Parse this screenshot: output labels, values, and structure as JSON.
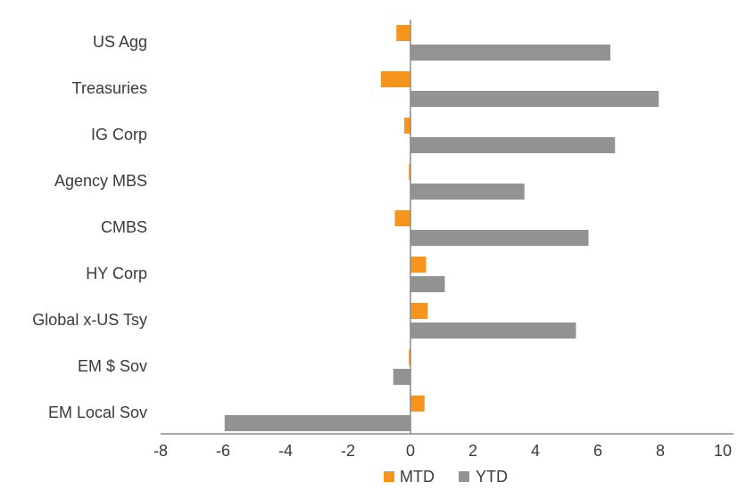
{
  "chart_data": {
    "type": "bar",
    "orientation": "horizontal",
    "categories": [
      "US Agg",
      "Treasuries",
      "IG Corp",
      "Agency MBS",
      "CMBS",
      "HY Corp",
      "Global x-US Tsy",
      "EM $ Sov",
      "EM Local Sov"
    ],
    "series": [
      {
        "name": "MTD",
        "color": "#F7941D",
        "values": [
          -0.45,
          -0.95,
          -0.2,
          -0.05,
          -0.5,
          0.5,
          0.55,
          -0.05,
          0.45
        ]
      },
      {
        "name": "YTD",
        "color": "#939393",
        "values": [
          6.4,
          7.95,
          6.55,
          3.65,
          5.7,
          1.1,
          5.3,
          -0.55,
          -5.95
        ]
      }
    ],
    "xlim": [
      -8,
      10
    ],
    "xticks": [
      "-8",
      "-4",
      "-2",
      "0",
      "2",
      "4",
      "6",
      "8",
      "10"
    ],
    "xtick_values": [
      -8,
      -4,
      -2,
      0,
      2,
      4,
      6,
      8,
      10
    ],
    "extra_xtick_labels": [
      "-6"
    ],
    "legend": {
      "position": "bottom",
      "items": [
        "MTD",
        "YTD"
      ]
    },
    "grid": false,
    "title": "",
    "xlabel": "",
    "ylabel": ""
  }
}
